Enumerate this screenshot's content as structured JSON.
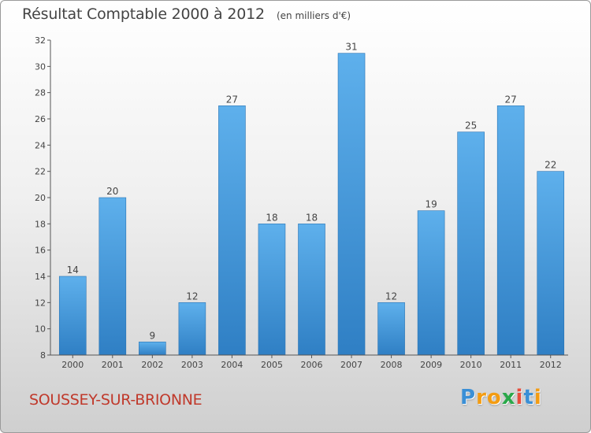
{
  "header": {
    "title": "Résultat Comptable 2000 à 2012",
    "unit_note": "(en milliers d'€)"
  },
  "footer": {
    "place_name": "SOUSSEY-SUR-BRIONNE",
    "brand_letters": [
      "P",
      "r",
      "o",
      "x",
      "i",
      "t",
      "i"
    ],
    "brand_colors": [
      "#3a8fd6",
      "#f39c12",
      "#f39c12",
      "#2aa84a",
      "#e74c3c",
      "#3a8fd6",
      "#f39c12"
    ]
  },
  "colors": {
    "bar_top": "#5eb0ec",
    "bar_bottom": "#2f7fc4",
    "axis": "#555555",
    "text": "#444444",
    "place": "#c0392b"
  },
  "chart_data": {
    "type": "bar",
    "title": "Résultat Comptable 2000 à 2012",
    "subtitle": "(en milliers d'€)",
    "xlabel": "",
    "ylabel": "",
    "categories": [
      "2000",
      "2001",
      "2002",
      "2003",
      "2004",
      "2005",
      "2006",
      "2007",
      "2008",
      "2009",
      "2010",
      "2011",
      "2012"
    ],
    "values": [
      14,
      20,
      9,
      12,
      27,
      18,
      18,
      31,
      12,
      19,
      25,
      27,
      22
    ],
    "ylim": [
      8,
      32
    ],
    "yticks": [
      8,
      10,
      12,
      14,
      16,
      18,
      20,
      22,
      24,
      26,
      28,
      30,
      32
    ],
    "grid": false,
    "data_labels": true
  }
}
